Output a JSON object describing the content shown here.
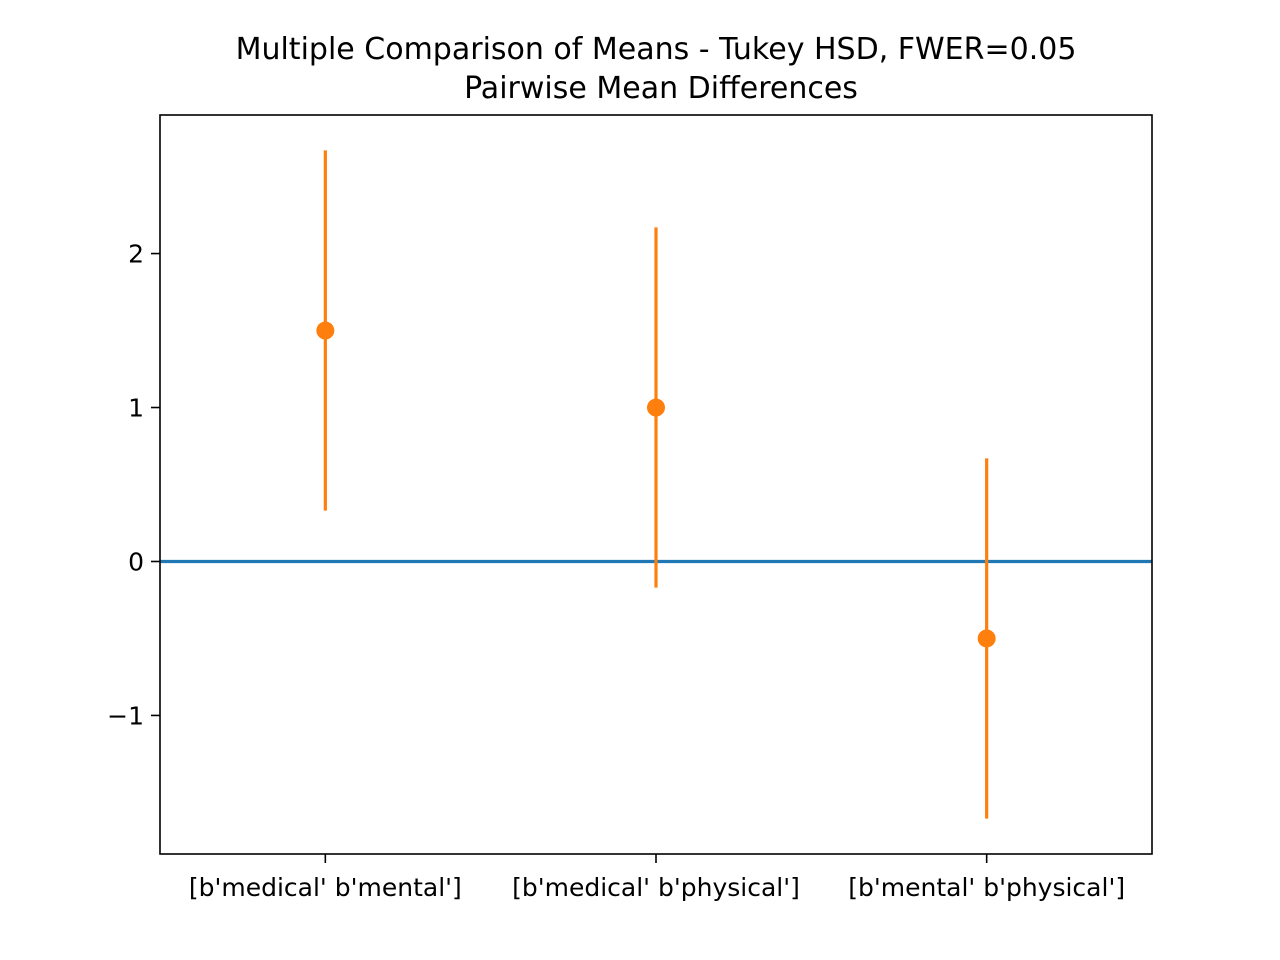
{
  "chart_data": {
    "type": "errorbar",
    "title": "Multiple Comparison of Means - Tukey HSD, FWER=0.05",
    "subtitle": "Pairwise Mean Differences",
    "xlabel": "",
    "ylabel": "",
    "categories": [
      "[b'medical' b'mental']",
      "[b'medical' b'physical']",
      "[b'mental' b'physical']"
    ],
    "means": [
      1.5,
      1.0,
      -0.5
    ],
    "lower": [
      0.33,
      -0.17,
      -1.67
    ],
    "upper": [
      2.67,
      2.17,
      0.67
    ],
    "reference_line": 0,
    "ylim": [
      -1.9,
      2.9
    ],
    "yticks": [
      -1,
      0,
      1,
      2
    ],
    "ytick_labels": [
      "−1",
      "0",
      "1",
      "2"
    ],
    "grid": false,
    "colors": {
      "interval": "#ff7f0e",
      "reference": "#1f77b4",
      "axes": "#000000"
    }
  }
}
